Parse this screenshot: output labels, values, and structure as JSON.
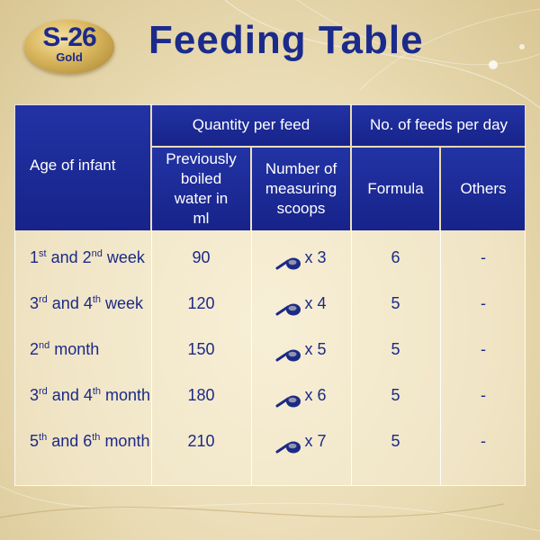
{
  "brand": {
    "logo_main": "S-26",
    "logo_sub": "Gold"
  },
  "title": "Feeding Table",
  "table": {
    "headers": {
      "age": "Age of infant",
      "quantity_group": "Quantity per feed",
      "feeds_group": "No. of feeds per day",
      "water": "Previously boiled water in ml",
      "scoops": "Number of measuring scoops",
      "formula": "Formula",
      "others": "Others"
    },
    "rows": [
      {
        "age": [
          [
            "1",
            "st"
          ],
          [
            " and 2",
            "nd"
          ],
          [
            " week",
            ""
          ]
        ],
        "water": "90",
        "scoops": "x 3",
        "formula": "6",
        "others": "-"
      },
      {
        "age": [
          [
            "3",
            "rd"
          ],
          [
            " and 4",
            "th"
          ],
          [
            " week",
            ""
          ]
        ],
        "water": "120",
        "scoops": "x 4",
        "formula": "5",
        "others": "-"
      },
      {
        "age": [
          [
            "2",
            "nd"
          ],
          [
            " month",
            ""
          ]
        ],
        "water": "150",
        "scoops": "x 5",
        "formula": "5",
        "others": "-"
      },
      {
        "age": [
          [
            "3",
            "rd"
          ],
          [
            " and 4",
            "th"
          ],
          [
            " month",
            ""
          ]
        ],
        "water": "180",
        "scoops": "x 6",
        "formula": "5",
        "others": "-"
      },
      {
        "age": [
          [
            "5",
            "th"
          ],
          [
            " and 6",
            "th"
          ],
          [
            " month",
            ""
          ]
        ],
        "water": "210",
        "scoops": "x 7",
        "formula": "5",
        "others": "-"
      }
    ]
  },
  "colors": {
    "header_blue": "#1b2a8c",
    "text_blue": "#1b2a86",
    "background_gold": "#e9dbb3"
  },
  "icons": {
    "scoop": "measuring-scoop-icon"
  }
}
